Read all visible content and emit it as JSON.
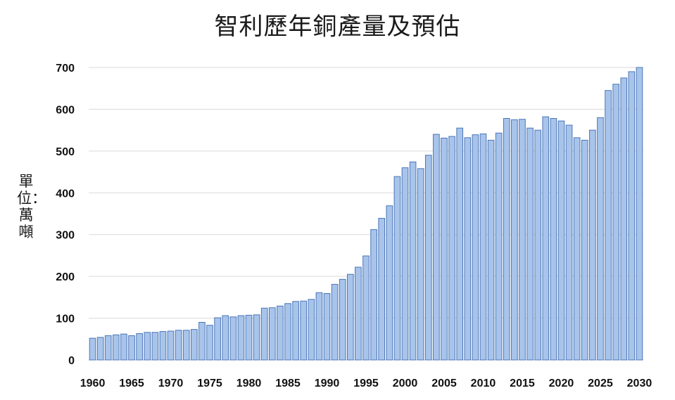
{
  "chart_data": {
    "type": "bar",
    "title": "智利歷年銅產量及預估",
    "ylabel": "單位：萬噸",
    "xlabel": "",
    "ylim": [
      0,
      700
    ],
    "yticks": [
      0,
      100,
      200,
      300,
      400,
      500,
      600,
      700
    ],
    "xticks": [
      1960,
      1965,
      1970,
      1975,
      1980,
      1985,
      1990,
      1995,
      2000,
      2005,
      2010,
      2015,
      2020,
      2025,
      2030
    ],
    "grid": "horizontal",
    "bar_color": "#a9c4ea",
    "bar_edge_color": "#4a76b8",
    "categories": [
      1960,
      1961,
      1962,
      1963,
      1964,
      1965,
      1966,
      1967,
      1968,
      1969,
      1970,
      1971,
      1972,
      1973,
      1974,
      1975,
      1976,
      1977,
      1978,
      1979,
      1980,
      1981,
      1982,
      1983,
      1984,
      1985,
      1986,
      1987,
      1988,
      1989,
      1990,
      1991,
      1992,
      1993,
      1994,
      1995,
      1996,
      1997,
      1998,
      1999,
      2000,
      2001,
      2002,
      2003,
      2004,
      2005,
      2006,
      2007,
      2008,
      2009,
      2010,
      2011,
      2012,
      2013,
      2014,
      2015,
      2016,
      2017,
      2018,
      2019,
      2020,
      2021,
      2022,
      2023,
      2024,
      2025,
      2026,
      2027,
      2028,
      2029,
      2030
    ],
    "values": [
      52,
      54,
      58,
      60,
      62,
      58,
      63,
      66,
      66,
      68,
      69,
      71,
      71,
      73,
      90,
      83,
      101,
      106,
      103,
      106,
      107,
      108,
      124,
      125,
      129,
      135,
      140,
      141,
      145,
      161,
      159,
      181,
      193,
      205,
      222,
      249,
      312,
      339,
      369,
      439,
      460,
      474,
      458,
      490,
      540,
      531,
      535,
      555,
      532,
      539,
      541,
      526,
      543,
      578,
      575,
      576,
      555,
      550,
      582,
      578,
      572,
      562,
      532,
      526,
      550,
      580,
      645,
      660,
      675,
      690,
      700
    ]
  }
}
